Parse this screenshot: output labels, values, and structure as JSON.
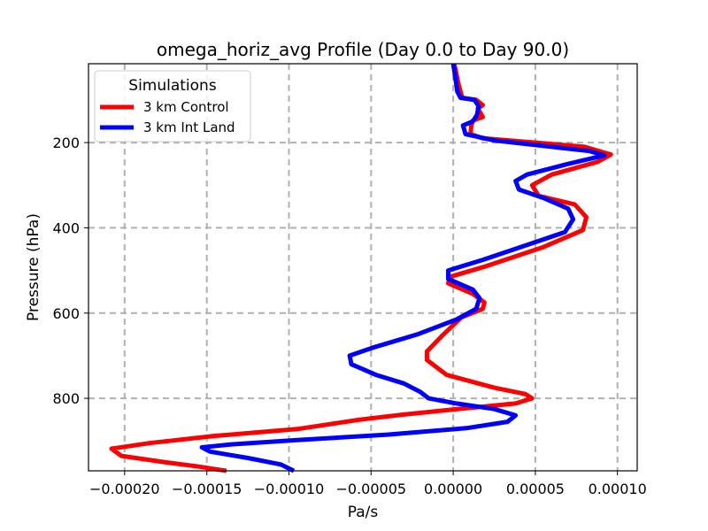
{
  "chart_data": {
    "type": "line",
    "title": "omega_horiz_avg Profile (Day 0.0 to Day 90.0)",
    "xlabel": "Pa/s",
    "ylabel": "Pressure (hPa)",
    "xlim": [
      -0.000222,
      0.000112
    ],
    "ylim": [
      970,
      15
    ],
    "y_inverted": true,
    "grid": true,
    "xticks": [
      -0.0002,
      -0.00015,
      -0.0001,
      -5e-05,
      0.0,
      5e-05,
      0.0001
    ],
    "xtick_labels": [
      "−0.00020",
      "−0.00015",
      "−0.00010",
      "−0.00005",
      "0.00000",
      "0.00005",
      "0.00010"
    ],
    "yticks": [
      200,
      400,
      600,
      800
    ],
    "ytick_labels": [
      "200",
      "400",
      "600",
      "800"
    ],
    "legend": {
      "title": "Simulations",
      "location": "upper-left"
    },
    "series": [
      {
        "name": "3 km Control",
        "color": "#ff0000",
        "points": [
          [
            5e-07,
            15
          ],
          [
            1.5e-06,
            30
          ],
          [
            3e-06,
            60
          ],
          [
            5.5e-06,
            95
          ],
          [
            1.4e-05,
            100
          ],
          [
            1.8e-05,
            112
          ],
          [
            1.5e-05,
            120
          ],
          [
            1.65e-05,
            130
          ],
          [
            1.8e-05,
            140
          ],
          [
            1.2e-05,
            148
          ],
          [
            1.1e-05,
            160
          ],
          [
            1.05e-05,
            180
          ],
          [
            1.8e-05,
            190
          ],
          [
            5e-05,
            200
          ],
          [
            8e-05,
            210
          ],
          [
            9.6e-05,
            228
          ],
          [
            8.8e-05,
            245
          ],
          [
            6e-05,
            275
          ],
          [
            4.8e-05,
            300
          ],
          [
            5.2e-05,
            325
          ],
          [
            7.4e-05,
            345
          ],
          [
            8.1e-05,
            375
          ],
          [
            7.9e-05,
            405
          ],
          [
            5.5e-05,
            445
          ],
          [
            2e-05,
            490
          ],
          [
            -2e-06,
            515
          ],
          [
            -3e-06,
            530
          ],
          [
            1.2e-05,
            555
          ],
          [
            1.9e-05,
            575
          ],
          [
            1.8e-05,
            590
          ],
          [
            5e-06,
            610
          ],
          [
            -6e-06,
            650
          ],
          [
            -1.6e-05,
            690
          ],
          [
            -1.6e-05,
            710
          ],
          [
            -4e-06,
            745
          ],
          [
            2.5e-05,
            775
          ],
          [
            4.4e-05,
            790
          ],
          [
            4.8e-05,
            800
          ],
          [
            3.8e-05,
            812
          ],
          [
            5e-07,
            826
          ],
          [
            -3e-05,
            838
          ],
          [
            -5.7e-05,
            850
          ],
          [
            -9.5e-05,
            872
          ],
          [
            -0.000145,
            888
          ],
          [
            -0.000185,
            905
          ],
          [
            -0.000208,
            918
          ],
          [
            -0.000202,
            935
          ],
          [
            -0.000175,
            950
          ],
          [
            -0.000155,
            960
          ],
          [
            -0.000138,
            970
          ]
        ]
      },
      {
        "name": "3 km Int Land",
        "color": "#0000ff",
        "points": [
          [
            0.0,
            15
          ],
          [
            1e-06,
            40
          ],
          [
            2.5e-06,
            80
          ],
          [
            4.5e-06,
            95
          ],
          [
            1.3e-05,
            100
          ],
          [
            1.55e-05,
            115
          ],
          [
            1.45e-05,
            135
          ],
          [
            1.2e-05,
            150
          ],
          [
            6e-06,
            160
          ],
          [
            7.5e-06,
            180
          ],
          [
            2.5e-05,
            195
          ],
          [
            6e-05,
            210
          ],
          [
            8.3e-05,
            220
          ],
          [
            9.2e-05,
            230
          ],
          [
            7e-05,
            250
          ],
          [
            4.5e-05,
            275
          ],
          [
            3.8e-05,
            290
          ],
          [
            4e-05,
            310
          ],
          [
            5.5e-05,
            330
          ],
          [
            7e-05,
            355
          ],
          [
            7.3e-05,
            380
          ],
          [
            6.8e-05,
            410
          ],
          [
            4.5e-05,
            440
          ],
          [
            1.8e-05,
            475
          ],
          [
            -3e-06,
            500
          ],
          [
            -3e-06,
            520
          ],
          [
            1.2e-05,
            545
          ],
          [
            1.6e-05,
            565
          ],
          [
            1.4e-05,
            590
          ],
          [
            2e-06,
            615
          ],
          [
            -2.2e-05,
            650
          ],
          [
            -4.8e-05,
            680
          ],
          [
            -6.3e-05,
            700
          ],
          [
            -6.2e-05,
            720
          ],
          [
            -4.7e-05,
            745
          ],
          [
            -3e-05,
            765
          ],
          [
            -2e-05,
            785
          ],
          [
            -1.5e-05,
            800
          ],
          [
            2e-06,
            812
          ],
          [
            2.5e-05,
            825
          ],
          [
            3.8e-05,
            840
          ],
          [
            3.3e-05,
            855
          ],
          [
            8e-06,
            870
          ],
          [
            -4e-05,
            885
          ],
          [
            -9.5e-05,
            898
          ],
          [
            -0.000135,
            908
          ],
          [
            -0.000153,
            915
          ],
          [
            -0.000148,
            925
          ],
          [
            -0.000125,
            940
          ],
          [
            -0.000105,
            955
          ],
          [
            -9.7e-05,
            970
          ]
        ]
      }
    ]
  }
}
